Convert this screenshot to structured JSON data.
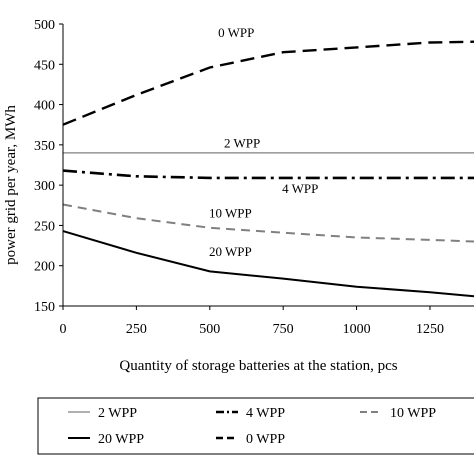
{
  "chart_data": {
    "type": "line",
    "xlabel": "Quantity of storage batteries at the station, pcs",
    "ylabel": "power grid per year, MWh",
    "xlim": [
      0,
      1400
    ],
    "ylim": [
      150,
      500
    ],
    "x_ticks": [
      0,
      250,
      500,
      750,
      1000,
      1250
    ],
    "y_ticks": [
      150,
      200,
      250,
      300,
      350,
      400,
      450,
      500
    ],
    "grid": "none",
    "legend_position": "bottom",
    "series": [
      {
        "name": "0 WPP",
        "color": "#000000",
        "dash": "long-dash",
        "x": [
          0,
          250,
          500,
          750,
          1000,
          1250,
          1400
        ],
        "y": [
          375,
          412,
          446,
          465,
          471,
          477,
          478
        ]
      },
      {
        "name": "2 WPP",
        "color": "#808080",
        "dash": "solid",
        "x": [
          0,
          250,
          500,
          750,
          1000,
          1250,
          1400
        ],
        "y": [
          340,
          340,
          340,
          340,
          340,
          340,
          340
        ]
      },
      {
        "name": "4 WPP",
        "color": "#000000",
        "dash": "dash-dot",
        "x": [
          0,
          250,
          500,
          750,
          1000,
          1250,
          1400
        ],
        "y": [
          318,
          311,
          309,
          309,
          309,
          309,
          309
        ]
      },
      {
        "name": "10 WPP",
        "color": "#808080",
        "dash": "dash",
        "x": [
          0,
          250,
          500,
          750,
          1000,
          1250,
          1400
        ],
        "y": [
          276,
          259,
          247,
          241,
          235,
          232,
          230
        ]
      },
      {
        "name": "20 WPP",
        "color": "#000000",
        "dash": "solid",
        "x": [
          0,
          250,
          500,
          750,
          1000,
          1250,
          1400
        ],
        "y": [
          243,
          216,
          193,
          184,
          174,
          167,
          162
        ]
      }
    ],
    "annotations": [
      {
        "text": "0 WPP",
        "series": "0 WPP"
      },
      {
        "text": "2 WPP",
        "series": "2 WPP"
      },
      {
        "text": "4 WPP",
        "series": "4 WPP"
      },
      {
        "text": "10 WPP",
        "series": "10 WPP"
      },
      {
        "text": "20 WPP",
        "series": "20 WPP"
      }
    ],
    "legend": [
      {
        "label": "2 WPP",
        "series": "2 WPP"
      },
      {
        "label": "4 WPP",
        "series": "4 WPP"
      },
      {
        "label": "10 WPP",
        "series": "10 WPP"
      },
      {
        "label": "20 WPP",
        "series": "20 WPP"
      },
      {
        "label": "0 WPP",
        "series": "0 WPP"
      }
    ]
  }
}
